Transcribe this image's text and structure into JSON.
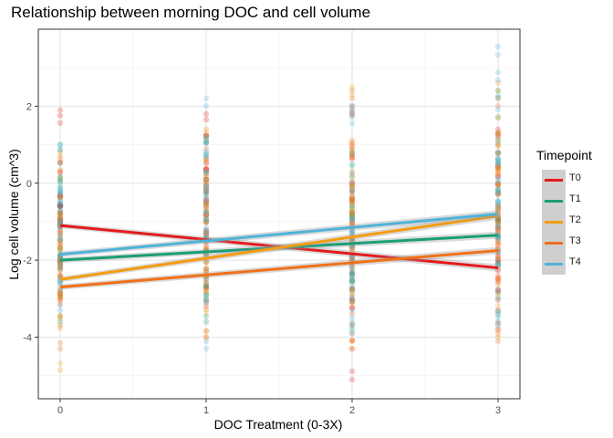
{
  "chart_data": {
    "type": "scatter",
    "title": "Relationship between morning DOC and cell volume",
    "xlabel": "DOC Treatment (0-3X)",
    "ylabel": "Log cell volume (cm^3)",
    "xlim": [
      -0.15,
      3.15
    ],
    "ylim": [
      -5.6,
      4.0
    ],
    "x_ticks": [
      0,
      1,
      2,
      3
    ],
    "y_ticks": [
      -4,
      -2,
      0,
      2
    ],
    "grid": true,
    "legend": {
      "title": "Timepoint",
      "placement": "right"
    },
    "series": [
      {
        "name": "T0",
        "color": "#e41a1c",
        "points": [
          {
            "x": 0,
            "ymin": -3.0,
            "ymax": 1.9
          },
          {
            "x": 1,
            "ymin": -3.2,
            "ymax": 1.8
          },
          {
            "x": 2,
            "ymin": -5.1,
            "ymax": 2.0
          },
          {
            "x": 3,
            "ymin": -3.8,
            "ymax": 1.4
          }
        ],
        "trend": {
          "x": [
            0,
            3
          ],
          "y": [
            -1.1,
            -2.2
          ]
        }
      },
      {
        "name": "T1",
        "color": "#1b9e77",
        "points": [
          {
            "x": 0,
            "ymin": -3.6,
            "ymax": 1.0
          },
          {
            "x": 1,
            "ymin": -3.6,
            "ymax": 1.2
          },
          {
            "x": 2,
            "ymin": -3.8,
            "ymax": 1.9
          },
          {
            "x": 3,
            "ymin": -3.6,
            "ymax": 2.4
          }
        ],
        "trend": {
          "x": [
            0,
            3
          ],
          "y": [
            -2.0,
            -1.35
          ]
        }
      },
      {
        "name": "T2",
        "color": "#f39c12",
        "points": [
          {
            "x": 0,
            "ymin": -4.85,
            "ymax": 0.8
          },
          {
            "x": 1,
            "ymin": -4.0,
            "ymax": 1.3
          },
          {
            "x": 2,
            "ymin": -4.3,
            "ymax": 2.5
          },
          {
            "x": 3,
            "ymin": -4.0,
            "ymax": 2.6
          }
        ],
        "trend": {
          "x": [
            0,
            3
          ],
          "y": [
            -2.5,
            -0.85
          ]
        }
      },
      {
        "name": "T3",
        "color": "#f0711a",
        "points": [
          {
            "x": 0,
            "ymin": -4.3,
            "ymax": 0.7
          },
          {
            "x": 1,
            "ymin": -4.0,
            "ymax": 1.4
          },
          {
            "x": 2,
            "ymin": -4.1,
            "ymax": 2.4
          },
          {
            "x": 3,
            "ymin": -4.1,
            "ymax": 2.2
          }
        ],
        "trend": {
          "x": [
            0,
            3
          ],
          "y": [
            -2.7,
            -1.75
          ]
        }
      },
      {
        "name": "T4",
        "color": "#4fb3d9",
        "points": [
          {
            "x": 0,
            "ymin": -3.3,
            "ymax": 1.0
          },
          {
            "x": 1,
            "ymin": -4.3,
            "ymax": 2.2
          },
          {
            "x": 2,
            "ymin": -3.9,
            "ymax": 2.0
          },
          {
            "x": 3,
            "ymin": -3.7,
            "ymax": 3.55
          }
        ],
        "trend": {
          "x": [
            0,
            3
          ],
          "y": [
            -1.85,
            -0.8
          ]
        }
      }
    ]
  }
}
